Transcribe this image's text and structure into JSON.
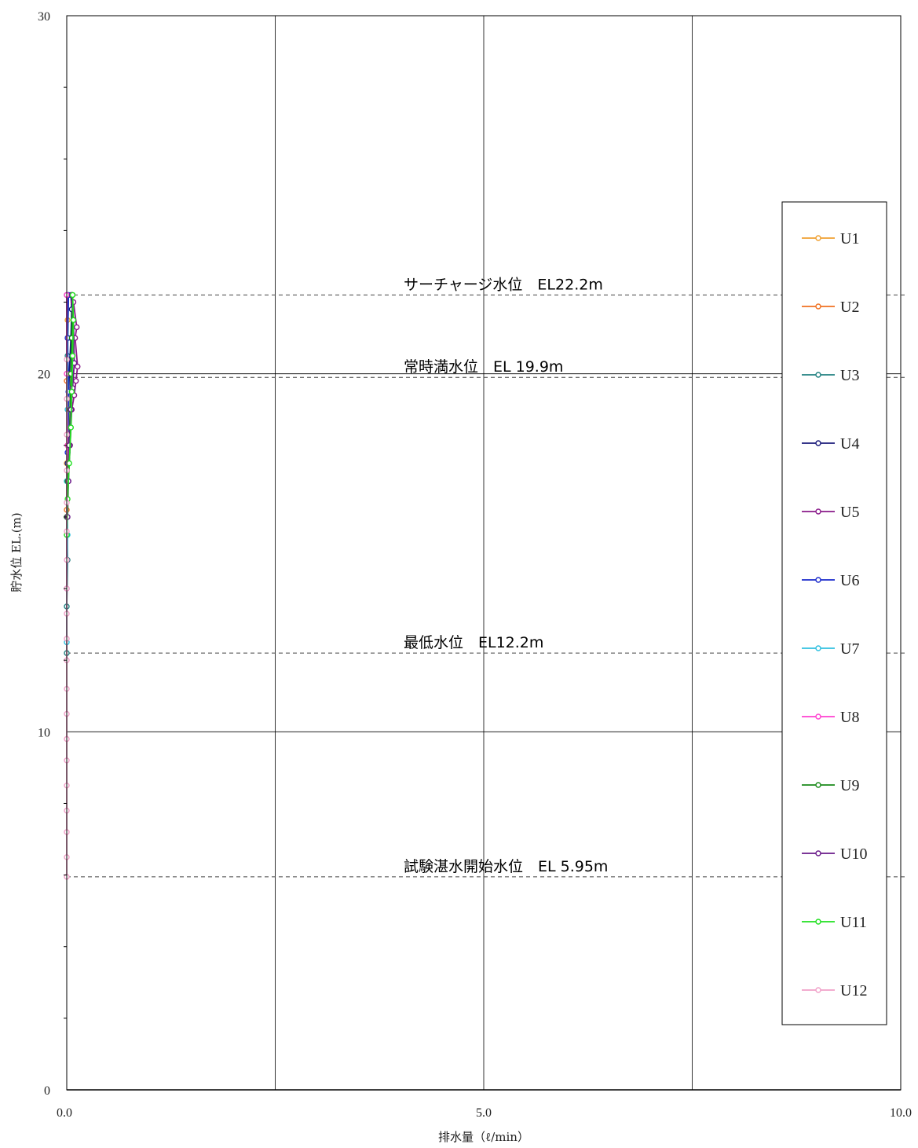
{
  "chart_data": {
    "type": "scatter",
    "title": "",
    "xlabel": "排水量（ℓ/min）",
    "ylabel": "貯水位 EL.(m)",
    "xlim": [
      0,
      10
    ],
    "ylim": [
      0,
      30
    ],
    "x_ticks": [
      {
        "value": 0,
        "label": "0.0"
      },
      {
        "value": 5,
        "label": "5.0"
      },
      {
        "value": 10,
        "label": "10.0"
      }
    ],
    "y_ticks": [
      {
        "value": 0,
        "label": "0"
      },
      {
        "value": 10,
        "label": "10"
      },
      {
        "value": 20,
        "label": "20"
      },
      {
        "value": 30,
        "label": "30"
      }
    ],
    "grid": true,
    "legend_position": "right",
    "reference_lines": [
      {
        "y": 22.2,
        "label": "サーチャージ水位　EL22.2m"
      },
      {
        "y": 19.9,
        "label": "常時満水位　EL 19.9m"
      },
      {
        "y": 12.2,
        "label": "最低水位　EL12.2m"
      },
      {
        "y": 5.95,
        "label": "試験湛水開始水位　EL 5.95m"
      }
    ],
    "series": [
      {
        "name": "U1",
        "color": "#f0a030",
        "x": [
          0.0,
          0.0,
          0.01,
          0.0,
          0.01,
          0.0
        ],
        "y": [
          16.0,
          17.5,
          19.0,
          20.0,
          21.5,
          22.2
        ]
      },
      {
        "name": "U2",
        "color": "#f07020",
        "x": [
          0.0,
          0.01,
          0.0,
          0.01,
          0.0
        ],
        "y": [
          16.2,
          18.0,
          19.8,
          21.0,
          22.2
        ]
      },
      {
        "name": "U3",
        "color": "#208080",
        "x": [
          0.0,
          0.0,
          0.01,
          0.0,
          0.01,
          0.02,
          0.01,
          0.02
        ],
        "y": [
          12.2,
          13.5,
          14.8,
          16.0,
          17.5,
          19.0,
          20.5,
          22.2
        ]
      },
      {
        "name": "U4",
        "color": "#1a1a7a",
        "x": [
          0.0,
          0.01,
          0.02,
          0.03,
          0.05,
          0.06,
          0.05
        ],
        "y": [
          16.0,
          17.5,
          19.0,
          20.0,
          21.0,
          21.8,
          22.2
        ]
      },
      {
        "name": "U5",
        "color": "#8a1a8a",
        "x": [
          0.02,
          0.04,
          0.06,
          0.09,
          0.11,
          0.13,
          0.1,
          0.12,
          0.08,
          0.06
        ],
        "y": [
          17.0,
          18.0,
          19.0,
          19.4,
          19.8,
          20.2,
          21.0,
          21.3,
          22.0,
          22.2
        ]
      },
      {
        "name": "U6",
        "color": "#1a2acc",
        "x": [
          0.0,
          0.01,
          0.02,
          0.01,
          0.02
        ],
        "y": [
          16.0,
          17.8,
          19.5,
          21.0,
          22.2
        ]
      },
      {
        "name": "U7",
        "color": "#30c0e0",
        "x": [
          0.0,
          0.0,
          0.01,
          0.0,
          0.01,
          0.0
        ],
        "y": [
          12.5,
          14.0,
          15.5,
          17.0,
          19.0,
          22.2
        ]
      },
      {
        "name": "U8",
        "color": "#ff40d0",
        "x": [
          0.0,
          0.0,
          0.01,
          0.0,
          0.0
        ],
        "y": [
          14.0,
          16.0,
          18.0,
          20.0,
          22.2
        ]
      },
      {
        "name": "U9",
        "color": "#1a8a1a",
        "x": [
          0.0,
          0.01,
          0.03,
          0.04,
          0.05,
          0.06,
          0.07
        ],
        "y": [
          16.0,
          17.0,
          18.0,
          19.0,
          20.0,
          21.0,
          22.2
        ]
      },
      {
        "name": "U10",
        "color": "#6a1a8a",
        "x": [
          0.01,
          0.02,
          0.03,
          0.05,
          0.07,
          0.09,
          0.08,
          0.06
        ],
        "y": [
          16.0,
          17.0,
          18.0,
          19.0,
          19.6,
          20.3,
          21.5,
          22.2
        ]
      },
      {
        "name": "U11",
        "color": "#20e020",
        "x": [
          0.0,
          0.01,
          0.03,
          0.05,
          0.06,
          0.07,
          0.08,
          0.07
        ],
        "y": [
          15.5,
          16.5,
          17.5,
          18.5,
          19.5,
          20.5,
          21.5,
          22.2
        ]
      },
      {
        "name": "U12",
        "color": "#f0a0c8",
        "x": [
          0.0,
          0.0,
          0.0,
          0.0,
          0.0,
          0.0,
          0.0,
          0.0,
          0.0,
          0.0,
          0.0,
          0.0,
          0.0,
          0.0,
          0.0,
          0.0,
          0.0,
          0.0,
          0.0,
          0.0
        ],
        "y": [
          5.95,
          6.5,
          7.2,
          7.8,
          8.5,
          9.2,
          9.8,
          10.5,
          11.2,
          12.0,
          12.6,
          13.3,
          14.0,
          14.8,
          15.6,
          16.4,
          17.3,
          18.3,
          19.3,
          20.4
        ]
      }
    ]
  }
}
